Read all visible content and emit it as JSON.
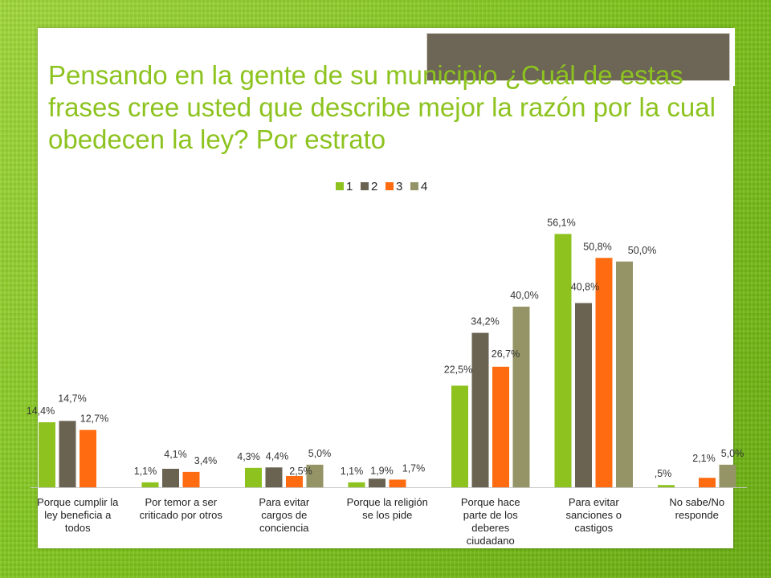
{
  "slide": {
    "title": "Pensando en la gente de su municipio ¿Cuál de estas frases cree usted que describe mejor la razón por la cual obedecen la ley? Por estrato"
  },
  "chart_data": {
    "type": "bar",
    "categories": [
      [
        "Porque cumplir la",
        "ley beneficia a",
        "todos"
      ],
      [
        "Por temor a ser",
        "criticado por otros"
      ],
      [
        "Para evitar",
        "cargos de",
        "conciencia"
      ],
      [
        "Porque la religión",
        "se los pide"
      ],
      [
        "Porque hace",
        "parte de los",
        "deberes",
        "ciudadano"
      ],
      [
        "Para evitar",
        "sanciones o",
        "castigos"
      ],
      [
        "No sabe/No",
        "responde"
      ]
    ],
    "series": [
      {
        "name": "1",
        "color": "#8dc21f",
        "values": [
          14.4,
          1.1,
          4.3,
          1.1,
          22.5,
          56.1,
          0.5
        ],
        "labels": [
          "14,4%",
          "1,1%",
          "4,3%",
          "1,1%",
          "22,5%",
          "56,1%",
          ",5%"
        ]
      },
      {
        "name": "2",
        "color": "#6b6352",
        "values": [
          14.7,
          4.1,
          4.4,
          1.9,
          34.2,
          40.8,
          0
        ],
        "labels": [
          "14,7%",
          "4,1%",
          "4,4%",
          "1,9%",
          "34,2%",
          "40,8%",
          null
        ]
      },
      {
        "name": "3",
        "color": "#ff6b10",
        "values": [
          12.7,
          3.4,
          2.5,
          1.7,
          26.7,
          50.8,
          2.1
        ],
        "labels": [
          "12,7%",
          "3,4%",
          "2,5%",
          "1,7%",
          "26,7%",
          "50,8%",
          "2,1%"
        ]
      },
      {
        "name": "4",
        "color": "#949466",
        "values": [
          0,
          0,
          5.0,
          0,
          40.0,
          50.0,
          5.0
        ],
        "labels": [
          null,
          null,
          "5,0%",
          null,
          "40,0%",
          "50,0%",
          "5,0%"
        ]
      }
    ],
    "ylim": [
      0,
      57
    ],
    "legend_position": "top-center",
    "grid": false
  }
}
